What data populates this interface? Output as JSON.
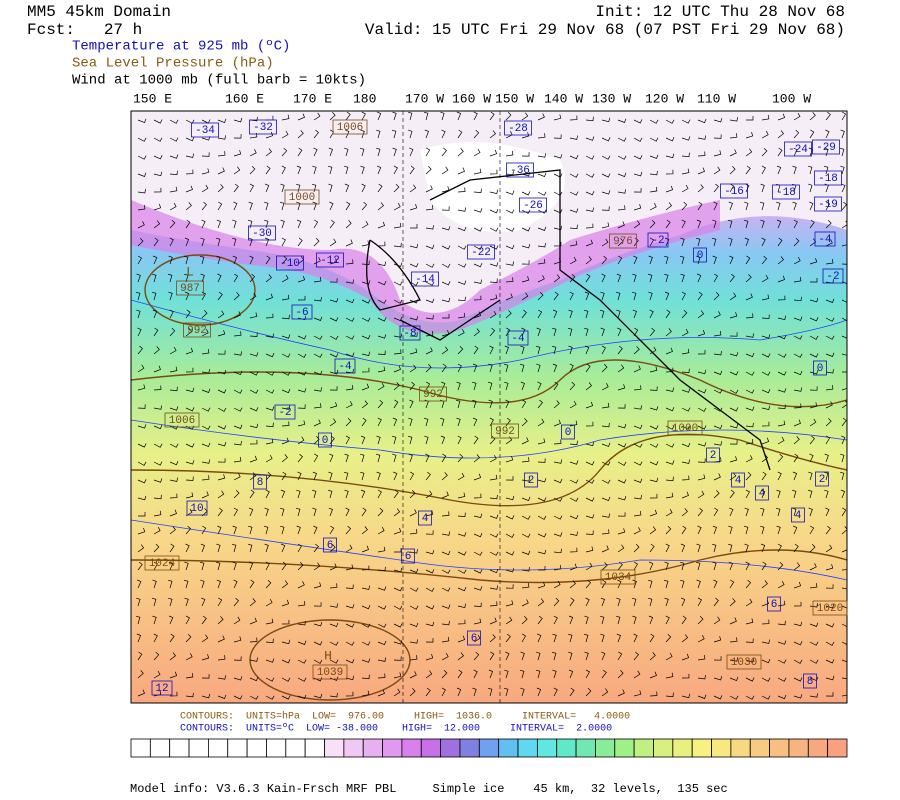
{
  "header": {
    "domain": "MM5 45km Domain",
    "forecast": "Fcst:   27 h",
    "field_temperature": "Temperature at 925 mb (ºC)",
    "field_pressure": "Sea Level Pressure (hPa)",
    "field_wind": "Wind at 1000 mb (full barb = 10kts)",
    "init": "Init: 12 UTC Thu 28 Nov 68",
    "valid": "Valid: 15 UTC Fri 29 Nov 68 (07 PST Fri 29 Nov 68)"
  },
  "map": {
    "longitudes": [
      "150 E",
      "160 E",
      "170 E",
      "180",
      "170 W",
      "160 W",
      "150 W",
      "140 W",
      "130 W",
      "120 W",
      "110 W",
      "100 W"
    ],
    "temperature_labels": [
      "-34",
      "-32",
      "-28",
      "-36",
      "-26",
      "-30",
      "-22",
      "-14",
      "-12",
      "-10",
      "-8",
      "-6",
      "-4",
      "-2",
      "0",
      "8",
      "10",
      "4",
      "6",
      "6",
      "2",
      "0",
      "-4",
      "6",
      "12",
      "-16",
      "-18",
      "-24",
      "-29",
      "-18",
      "-19",
      "-4",
      "-2",
      "0",
      "0",
      "-2",
      "2",
      "4",
      "4",
      "2",
      "4",
      "6",
      "8"
    ],
    "pressure_labels": [
      "1006",
      "1000",
      "987",
      "992",
      "992",
      "992",
      "1006",
      "1024",
      "1034",
      "1039",
      "1030",
      "976",
      "1000",
      "1020"
    ],
    "centers": [
      "L",
      "H"
    ]
  },
  "footer": {
    "pressure_contours": "CONTOURS:  UNITS=hPa  LOW=  976.00     HIGH=  1036.0     INTERVAL=   4.0000",
    "temperature_contours": "CONTOURS:  UNITS=ºC  LOW= -38.000    HIGH=  12.000     INTERVAL=  2.0000",
    "model_info": "Model info: V3.6.3 Kain-Frsch MRF PBL     Simple ice    45 km,  32 levels,  135 sec"
  }
}
